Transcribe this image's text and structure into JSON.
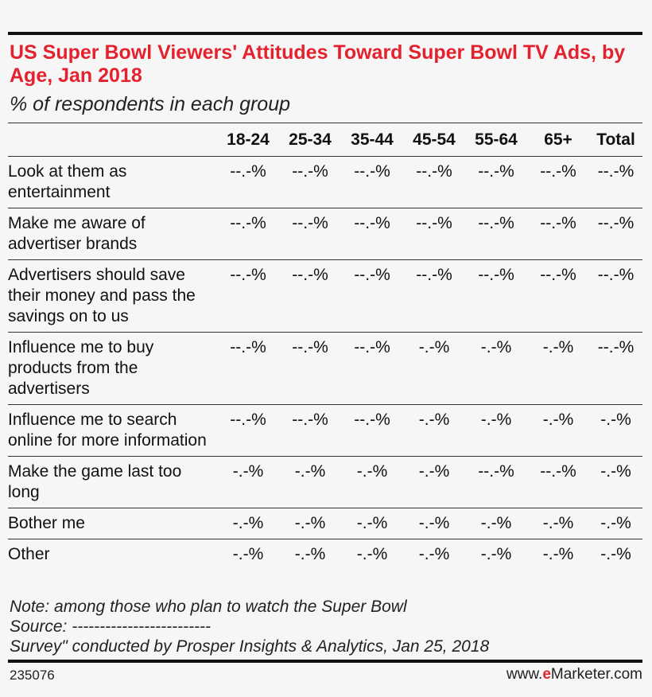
{
  "chart_data": {
    "type": "table",
    "title": "US Super Bowl Viewers' Attitudes Toward Super Bowl TV Ads, by Age, Jan 2018",
    "subtitle": "% of respondents in each group",
    "columns": [
      "18-24",
      "25-34",
      "35-44",
      "45-54",
      "55-64",
      "65+",
      "Total"
    ],
    "rows": [
      {
        "label": "Look at them as entertainment",
        "values": [
          "--.-%",
          "--.-%",
          "--.-%",
          "--.-%",
          "--.-%",
          "--.-%",
          "--.-%"
        ]
      },
      {
        "label": "Make me aware of advertiser brands",
        "values": [
          "--.-%",
          "--.-%",
          "--.-%",
          "--.-%",
          "--.-%",
          "--.-%",
          "--.-%"
        ]
      },
      {
        "label": "Advertisers should save their money and pass the savings on to us",
        "values": [
          "--.-%",
          "--.-%",
          "--.-%",
          "--.-%",
          "--.-%",
          "--.-%",
          "--.-%"
        ]
      },
      {
        "label": "Influence me to buy products from the advertisers",
        "values": [
          "--.-%",
          "--.-%",
          "--.-%",
          "-.-%",
          "-.-%",
          "-.-%",
          "--.-%"
        ]
      },
      {
        "label": "Influence me to search online for more information",
        "values": [
          "--.-%",
          "--.-%",
          "--.-%",
          "-.-%",
          "-.-%",
          "-.-%",
          "-.-%"
        ]
      },
      {
        "label": "Make the game last too long",
        "values": [
          "-.-%",
          "-.-%",
          "-.-%",
          "-.-%",
          "--.-%",
          "--.-%",
          "-.-%"
        ]
      },
      {
        "label": "Bother me",
        "values": [
          "-.-%",
          "-.-%",
          "-.-%",
          "-.-%",
          "-.-%",
          "-.-%",
          "-.-%"
        ]
      },
      {
        "label": "Other",
        "values": [
          "-.-%",
          "-.-%",
          "-.-%",
          "-.-%",
          "-.-%",
          "-.-%",
          "-.-%"
        ]
      }
    ]
  },
  "footer": {
    "note": "Note: among those who plan to watch the Super Bowl",
    "source": "Source: -------------------------",
    "survey": "Survey\" conducted by Prosper Insights & Analytics, Jan 25, 2018",
    "chart_id": "235076",
    "brand_prefix": "www.",
    "brand_e": "e",
    "brand_suffix": "Marketer.com"
  },
  "colors": {
    "title": "#e4222e",
    "background": "#f6f6f6",
    "rule": "#111111"
  }
}
